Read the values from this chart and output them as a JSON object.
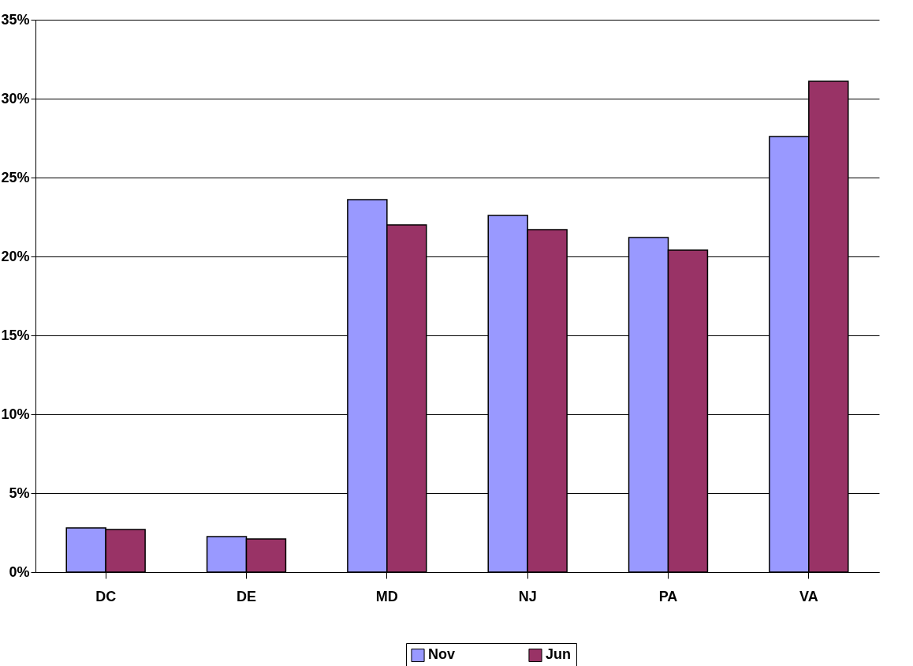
{
  "chart_data": {
    "type": "bar",
    "categories": [
      "DC",
      "DE",
      "MD",
      "NJ",
      "PA",
      "VA"
    ],
    "series": [
      {
        "name": "Nov",
        "color": "#9999ff",
        "values": [
          2.8,
          2.25,
          23.6,
          22.6,
          21.2,
          27.6
        ]
      },
      {
        "name": "Jun",
        "color": "#993366",
        "values": [
          2.7,
          2.1,
          22.0,
          21.7,
          20.4,
          31.1
        ]
      }
    ],
    "ylim": [
      0,
      35
    ],
    "yticks": [
      {
        "value": 0,
        "label": "0%"
      },
      {
        "value": 5,
        "label": "5%"
      },
      {
        "value": 10,
        "label": "10%"
      },
      {
        "value": 15,
        "label": "15%"
      },
      {
        "value": 20,
        "label": "20%"
      },
      {
        "value": 25,
        "label": "25%"
      },
      {
        "value": 30,
        "label": "30%"
      },
      {
        "value": 35,
        "label": "35%"
      }
    ],
    "grid": "y",
    "legend": "bottom"
  }
}
